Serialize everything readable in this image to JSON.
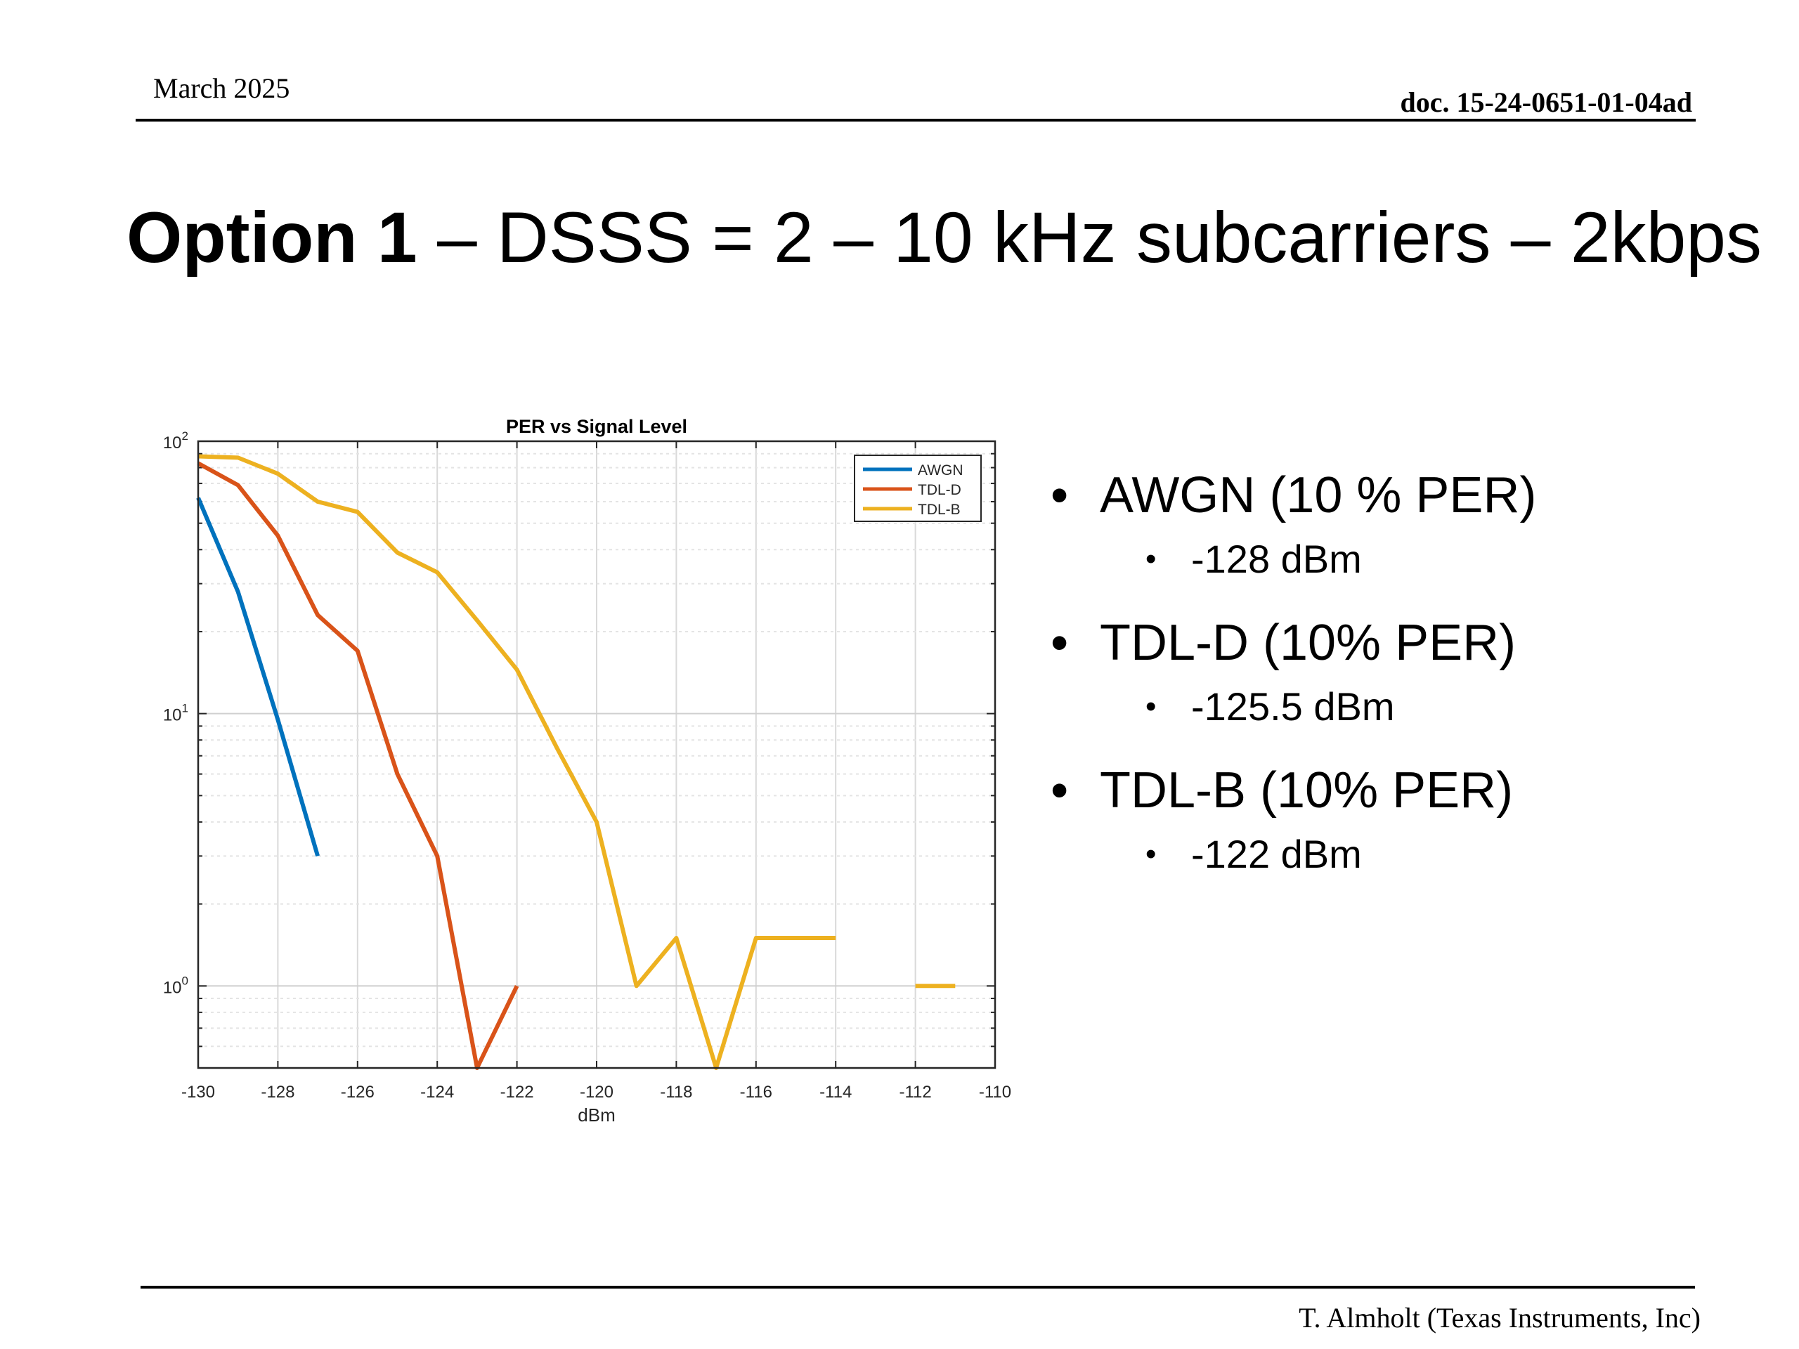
{
  "header": {
    "date": "March 2025",
    "doc": "doc. 15-24-0651-01-04ad"
  },
  "title": {
    "bold": "Option 1",
    "rest": " – DSSS = 2 – 10 kHz subcarriers – 2kbps"
  },
  "bullets": [
    {
      "main": "AWGN (10 % PER)",
      "sub": "-128 dBm"
    },
    {
      "main": "TDL-D (10% PER)",
      "sub": "-125.5 dBm"
    },
    {
      "main": "TDL-B (10% PER)",
      "sub": "-122 dBm"
    }
  ],
  "footer": {
    "author": "T. Almholt (Texas Instruments, Inc)"
  },
  "chart_data": {
    "type": "line",
    "title": "PER vs Signal Level",
    "xlabel": "dBm",
    "ylabel": "",
    "xlim": [
      -130,
      -110
    ],
    "ylim": [
      0.5,
      100
    ],
    "yscale": "log",
    "xticks": [
      -130,
      -128,
      -126,
      -124,
      -122,
      -120,
      -118,
      -116,
      -114,
      -112,
      -110
    ],
    "yticks": [
      1,
      10,
      100
    ],
    "ytick_labels": [
      {
        "base": "10",
        "exp": "0"
      },
      {
        "base": "10",
        "exp": "1"
      },
      {
        "base": "10",
        "exp": "2"
      }
    ],
    "grid": true,
    "legend_position": "top-right",
    "series": [
      {
        "name": "AWGN",
        "color": "#0072BD",
        "segments": [
          [
            [
              -130,
              62
            ],
            [
              -129,
              28
            ],
            [
              -128,
              9.5
            ],
            [
              -127,
              3
            ]
          ]
        ]
      },
      {
        "name": "TDL-D",
        "color": "#D95319",
        "segments": [
          [
            [
              -130,
              83
            ],
            [
              -129,
              69
            ],
            [
              -128,
              45
            ],
            [
              -127,
              23
            ],
            [
              -126,
              17
            ],
            [
              -125,
              6
            ],
            [
              -124,
              3
            ],
            [
              -123,
              0.5
            ],
            [
              -122,
              1
            ]
          ]
        ]
      },
      {
        "name": "TDL-B",
        "color": "#EDB120",
        "segments": [
          [
            [
              -130,
              88
            ],
            [
              -129,
              87
            ],
            [
              -128,
              76
            ],
            [
              -127,
              60
            ],
            [
              -126,
              55
            ],
            [
              -125,
              39
            ],
            [
              -124,
              33
            ],
            [
              -123,
              22
            ],
            [
              -122,
              14.5
            ],
            [
              -121,
              7.5
            ],
            [
              -120,
              4
            ],
            [
              -119,
              1
            ],
            [
              -118,
              1.5
            ],
            [
              -117,
              0.5
            ],
            [
              -116,
              1.5
            ],
            [
              -115,
              1.5
            ],
            [
              -114,
              1.5
            ]
          ],
          [
            [
              -112,
              1
            ],
            [
              -111,
              1
            ]
          ]
        ]
      }
    ]
  }
}
